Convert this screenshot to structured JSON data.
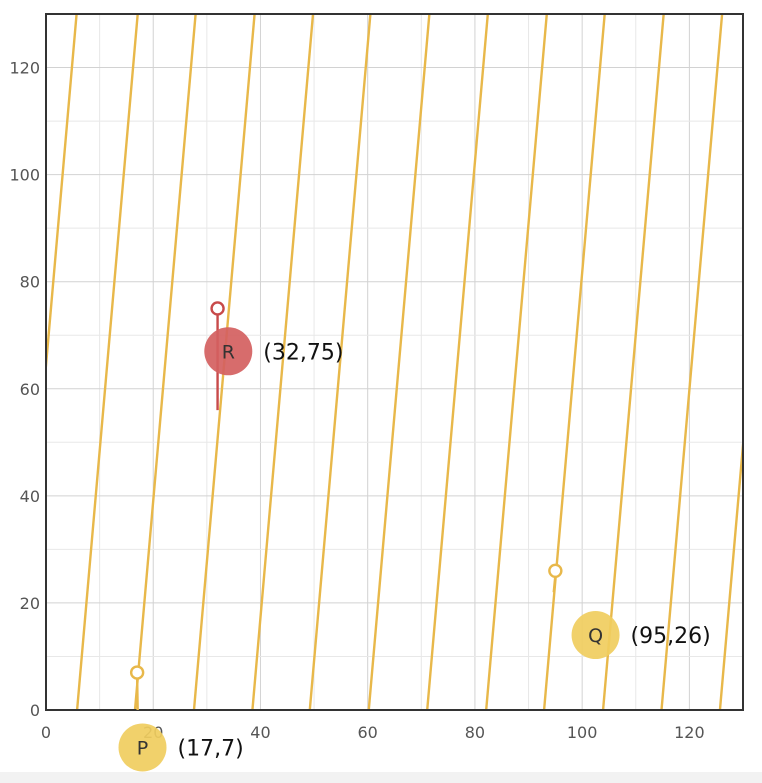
{
  "chart_data": {
    "type": "scatter",
    "title": "",
    "xlabel": "",
    "ylabel": "",
    "xlim": [
      0,
      130
    ],
    "ylim": [
      0,
      130
    ],
    "grid": true,
    "x_ticks": [
      "0",
      "20",
      "40",
      "60",
      "80",
      "100",
      "120"
    ],
    "y_ticks": [
      "0",
      "20",
      "40",
      "60",
      "80",
      "100",
      "120"
    ],
    "line_color": "#e8b84a",
    "line_family": {
      "slope": 11.5,
      "x_intercepts": [
        -5.6,
        5.8,
        16.6,
        27.6,
        38.5,
        49.2,
        60.2,
        71.1,
        82.1,
        92.9,
        103.9,
        114.8,
        125.7
      ]
    },
    "points": [
      {
        "label": "P",
        "coord_text": "(17,7)",
        "x": 17,
        "y": 7,
        "color": "#f0cd5e",
        "marker_color": "#e8b84a",
        "stem_from": [
          17.1,
          0
        ],
        "badge_at": [
          18,
          -7
        ]
      },
      {
        "label": "Q",
        "coord_text": "(95,26)",
        "x": 95,
        "y": 26,
        "color": "#f0cd5e",
        "marker_color": "#e8b84a",
        "stem_from": [
          94.7,
          22
        ],
        "badge_at": [
          102.5,
          14
        ]
      },
      {
        "label": "R",
        "coord_text": "(32,75)",
        "x": 32,
        "y": 75,
        "color": "#d46060",
        "marker_color": "#c84a4a",
        "stem_from": [
          32,
          56
        ],
        "badge_at": [
          34,
          67
        ]
      }
    ]
  }
}
